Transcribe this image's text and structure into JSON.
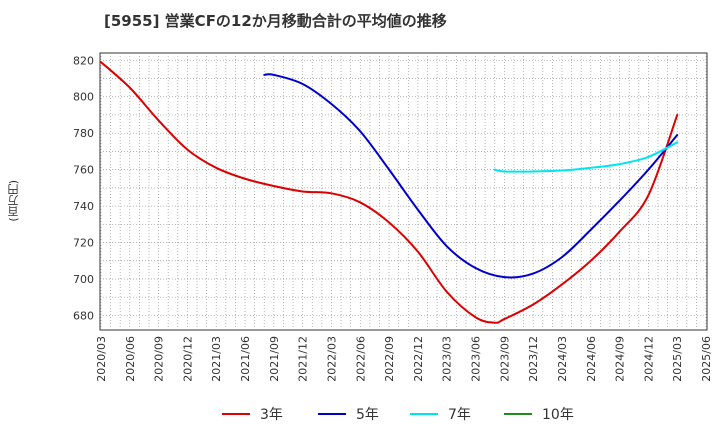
{
  "chart_data": {
    "type": "line",
    "title": "[5955]  営業CFの12か月移動合計の平均値の推移",
    "ylabel": "(百万円)",
    "xlabel": "",
    "ylim": [
      672,
      824
    ],
    "yticks": [
      680,
      700,
      720,
      740,
      760,
      780,
      800,
      820
    ],
    "x_ticks": [
      "2020/03",
      "2020/06",
      "2020/09",
      "2020/12",
      "2021/03",
      "2021/06",
      "2021/09",
      "2021/12",
      "2022/03",
      "2022/06",
      "2022/09",
      "2022/12",
      "2023/03",
      "2023/06",
      "2023/09",
      "2023/12",
      "2024/03",
      "2024/06",
      "2024/09",
      "2024/12",
      "2025/03",
      "2025/06"
    ],
    "grid": true,
    "legend_position": "bottom",
    "series": [
      {
        "name": "3年",
        "color": "#dd0000",
        "x": [
          "2020/03",
          "2020/06",
          "2020/09",
          "2020/12",
          "2021/03",
          "2021/06",
          "2021/09",
          "2021/12",
          "2022/03",
          "2022/06",
          "2022/09",
          "2022/12",
          "2023/03",
          "2023/06",
          "2023/08",
          "2023/09",
          "2023/12",
          "2024/03",
          "2024/06",
          "2024/09",
          "2024/12",
          "2025/03"
        ],
        "values": [
          819,
          805,
          787,
          771,
          761,
          755,
          751,
          748,
          747,
          742,
          731,
          715,
          693,
          679,
          676,
          678,
          686,
          697,
          710,
          726,
          746,
          790
        ]
      },
      {
        "name": "5年",
        "color": "#0000cc",
        "x": [
          "2021/08",
          "2021/09",
          "2021/12",
          "2022/03",
          "2022/06",
          "2022/09",
          "2022/12",
          "2023/03",
          "2023/06",
          "2023/09",
          "2023/12",
          "2024/03",
          "2024/06",
          "2024/09",
          "2024/12",
          "2025/03"
        ],
        "values": [
          812,
          812,
          807,
          796,
          781,
          760,
          738,
          718,
          706,
          701,
          703,
          712,
          727,
          743,
          760,
          779
        ]
      },
      {
        "name": "7年",
        "color": "#00e5ee",
        "x": [
          "2023/08",
          "2023/09",
          "2023/12",
          "2024/03",
          "2024/06",
          "2024/09",
          "2024/12",
          "2025/03"
        ],
        "values": [
          760,
          759,
          759,
          759.5,
          761,
          763,
          767,
          775
        ]
      },
      {
        "name": "10年",
        "color": "#228b22",
        "x": [],
        "values": []
      }
    ]
  }
}
